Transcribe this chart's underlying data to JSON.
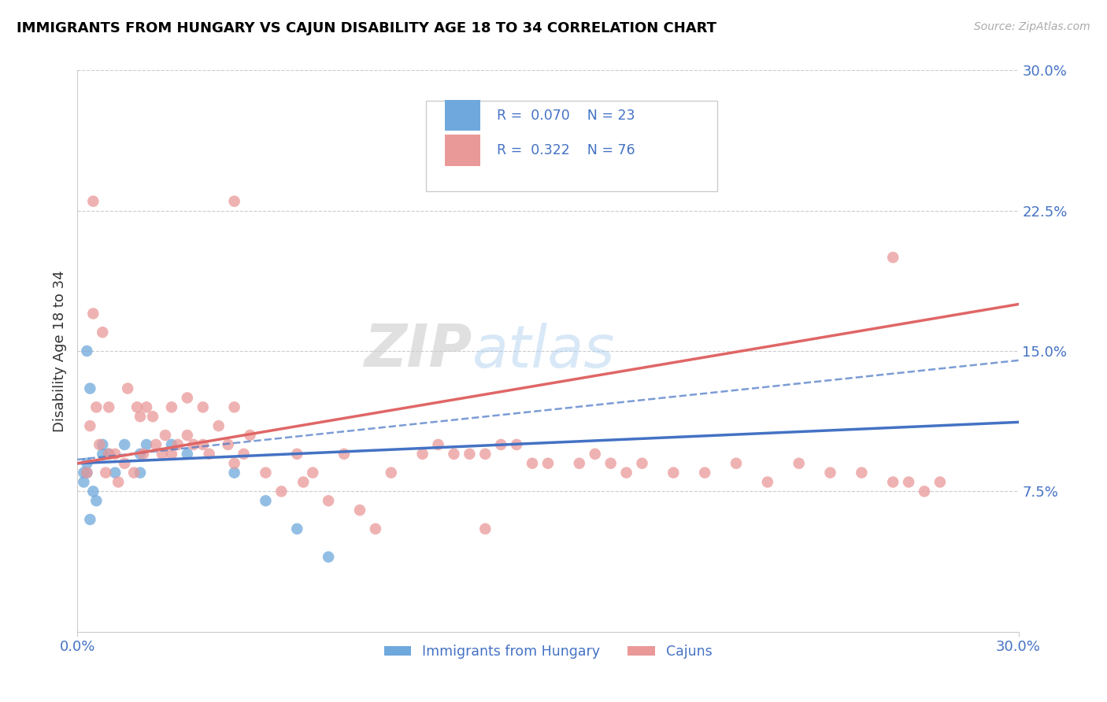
{
  "title": "IMMIGRANTS FROM HUNGARY VS CAJUN DISABILITY AGE 18 TO 34 CORRELATION CHART",
  "source_text": "Source: ZipAtlas.com",
  "ylabel": "Disability Age 18 to 34",
  "xmin": 0.0,
  "xmax": 0.3,
  "ymin": 0.0,
  "ymax": 0.3,
  "legend_r1": "R =  0.070",
  "legend_n1": "N = 23",
  "legend_r2": "R =  0.322",
  "legend_n2": "N = 76",
  "legend_label1": "Immigrants from Hungary",
  "legend_label2": "Cajuns",
  "blue_color": "#6fa8dc",
  "pink_color": "#ea9999",
  "line_blue": "#4472c4",
  "line_pink": "#e06666",
  "watermark_zip": "ZIP",
  "watermark_atlas": "atlas",
  "background_color": "#ffffff",
  "grid_color": "#cccccc",
  "title_color": "#000000",
  "axis_color": "#4472c4",
  "blue_line_x": [
    0.0,
    0.3
  ],
  "blue_line_y": [
    0.09,
    0.112
  ],
  "dashed_line_x": [
    0.0,
    0.3
  ],
  "dashed_line_y": [
    0.092,
    0.145
  ],
  "pink_line_x": [
    0.0,
    0.3
  ],
  "pink_line_y": [
    0.09,
    0.175
  ],
  "hungary_x": [
    0.003,
    0.004,
    0.003,
    0.005,
    0.006,
    0.008,
    0.002,
    0.004,
    0.003,
    0.002,
    0.008,
    0.01,
    0.012,
    0.015,
    0.02,
    0.02,
    0.022,
    0.03,
    0.035,
    0.05,
    0.06,
    0.07,
    0.08
  ],
  "hungary_y": [
    0.15,
    0.13,
    0.09,
    0.075,
    0.07,
    0.1,
    0.08,
    0.06,
    0.085,
    0.085,
    0.095,
    0.095,
    0.085,
    0.1,
    0.085,
    0.095,
    0.1,
    0.1,
    0.095,
    0.085,
    0.07,
    0.055,
    0.04
  ],
  "cajun_x": [
    0.003,
    0.005,
    0.004,
    0.006,
    0.007,
    0.008,
    0.009,
    0.01,
    0.01,
    0.012,
    0.013,
    0.015,
    0.016,
    0.018,
    0.019,
    0.02,
    0.021,
    0.022,
    0.024,
    0.025,
    0.027,
    0.028,
    0.03,
    0.03,
    0.032,
    0.035,
    0.035,
    0.037,
    0.04,
    0.04,
    0.042,
    0.045,
    0.048,
    0.05,
    0.05,
    0.053,
    0.055,
    0.06,
    0.065,
    0.07,
    0.072,
    0.075,
    0.08,
    0.085,
    0.09,
    0.095,
    0.1,
    0.11,
    0.115,
    0.12,
    0.125,
    0.13,
    0.135,
    0.14,
    0.145,
    0.15,
    0.16,
    0.165,
    0.17,
    0.175,
    0.18,
    0.19,
    0.2,
    0.21,
    0.22,
    0.23,
    0.24,
    0.25,
    0.26,
    0.265,
    0.27,
    0.275,
    0.005,
    0.05,
    0.13,
    0.26
  ],
  "cajun_y": [
    0.085,
    0.17,
    0.11,
    0.12,
    0.1,
    0.16,
    0.085,
    0.095,
    0.12,
    0.095,
    0.08,
    0.09,
    0.13,
    0.085,
    0.12,
    0.115,
    0.095,
    0.12,
    0.115,
    0.1,
    0.095,
    0.105,
    0.095,
    0.12,
    0.1,
    0.105,
    0.125,
    0.1,
    0.1,
    0.12,
    0.095,
    0.11,
    0.1,
    0.09,
    0.12,
    0.095,
    0.105,
    0.085,
    0.075,
    0.095,
    0.08,
    0.085,
    0.07,
    0.095,
    0.065,
    0.055,
    0.085,
    0.095,
    0.1,
    0.095,
    0.095,
    0.095,
    0.1,
    0.1,
    0.09,
    0.09,
    0.09,
    0.095,
    0.09,
    0.085,
    0.09,
    0.085,
    0.085,
    0.09,
    0.08,
    0.09,
    0.085,
    0.085,
    0.08,
    0.08,
    0.075,
    0.08,
    0.23,
    0.23,
    0.055,
    0.2
  ]
}
